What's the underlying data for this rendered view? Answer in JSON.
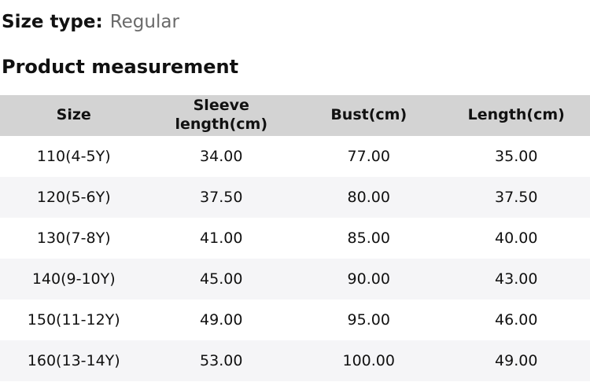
{
  "page": {
    "size_type_label": "Size type:",
    "size_type_value": "Regular",
    "section_title": "Product measurement"
  },
  "table": {
    "headers": [
      "Size",
      "Sleeve length(cm)",
      "Bust(cm)",
      "Length(cm)"
    ],
    "rows": [
      [
        "110(4-5Y)",
        "34.00",
        "77.00",
        "35.00"
      ],
      [
        "120(5-6Y)",
        "37.50",
        "80.00",
        "37.50"
      ],
      [
        "130(7-8Y)",
        "41.00",
        "85.00",
        "40.00"
      ],
      [
        "140(9-10Y)",
        "45.00",
        "90.00",
        "43.00"
      ],
      [
        "150(11-12Y)",
        "49.00",
        "95.00",
        "46.00"
      ],
      [
        "160(13-14Y)",
        "53.00",
        "100.00",
        "49.00"
      ]
    ]
  },
  "colors": {
    "header_bg": "#d3d3d3",
    "alt_row_bg": "#f5f5f7",
    "muted_text": "#6a6a6a",
    "text": "#111111"
  }
}
